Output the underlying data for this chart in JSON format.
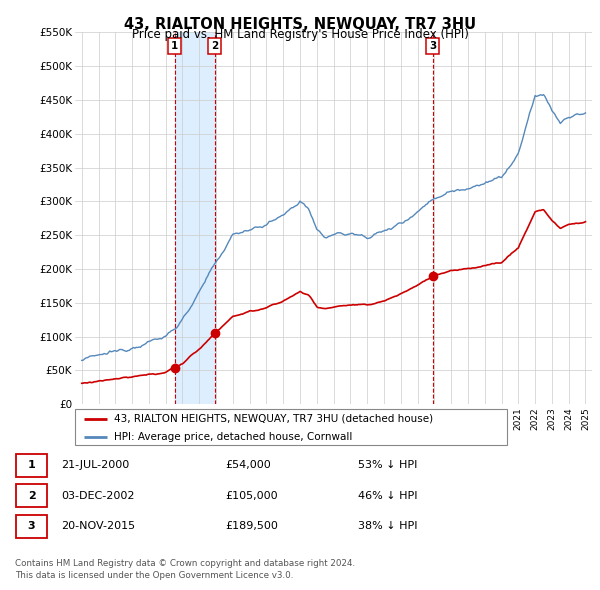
{
  "title": "43, RIALTON HEIGHTS, NEWQUAY, TR7 3HU",
  "subtitle": "Price paid vs. HM Land Registry's House Price Index (HPI)",
  "ylim": [
    0,
    550000
  ],
  "yticks": [
    0,
    50000,
    100000,
    150000,
    200000,
    250000,
    300000,
    350000,
    400000,
    450000,
    500000,
    550000
  ],
  "ytick_labels": [
    "£0",
    "£50K",
    "£100K",
    "£150K",
    "£200K",
    "£250K",
    "£300K",
    "£350K",
    "£400K",
    "£450K",
    "£500K",
    "£550K"
  ],
  "xlim_left": 1994.6,
  "xlim_right": 2025.4,
  "xtick_start": 1995,
  "xtick_end": 2025,
  "transactions": [
    {
      "date_label": "21-JUL-2000",
      "year": 2000.55,
      "price": 54000,
      "label": "1",
      "pct": "53% ↓ HPI"
    },
    {
      "date_label": "03-DEC-2002",
      "year": 2002.92,
      "price": 105000,
      "label": "2",
      "pct": "46% ↓ HPI"
    },
    {
      "date_label": "20-NOV-2015",
      "year": 2015.89,
      "price": 189500,
      "label": "3",
      "pct": "38% ↓ HPI"
    }
  ],
  "legend_entry1": "43, RIALTON HEIGHTS, NEWQUAY, TR7 3HU (detached house)",
  "legend_entry2": "HPI: Average price, detached house, Cornwall",
  "footer1": "Contains HM Land Registry data © Crown copyright and database right 2024.",
  "footer2": "This data is licensed under the Open Government Licence v3.0.",
  "property_line_color": "#cc0000",
  "hpi_line_color": "#5588bb",
  "shade_color": "#ddeeff",
  "background_color": "#ffffff",
  "grid_color": "#cccccc",
  "chart_bg": "#ffffff"
}
